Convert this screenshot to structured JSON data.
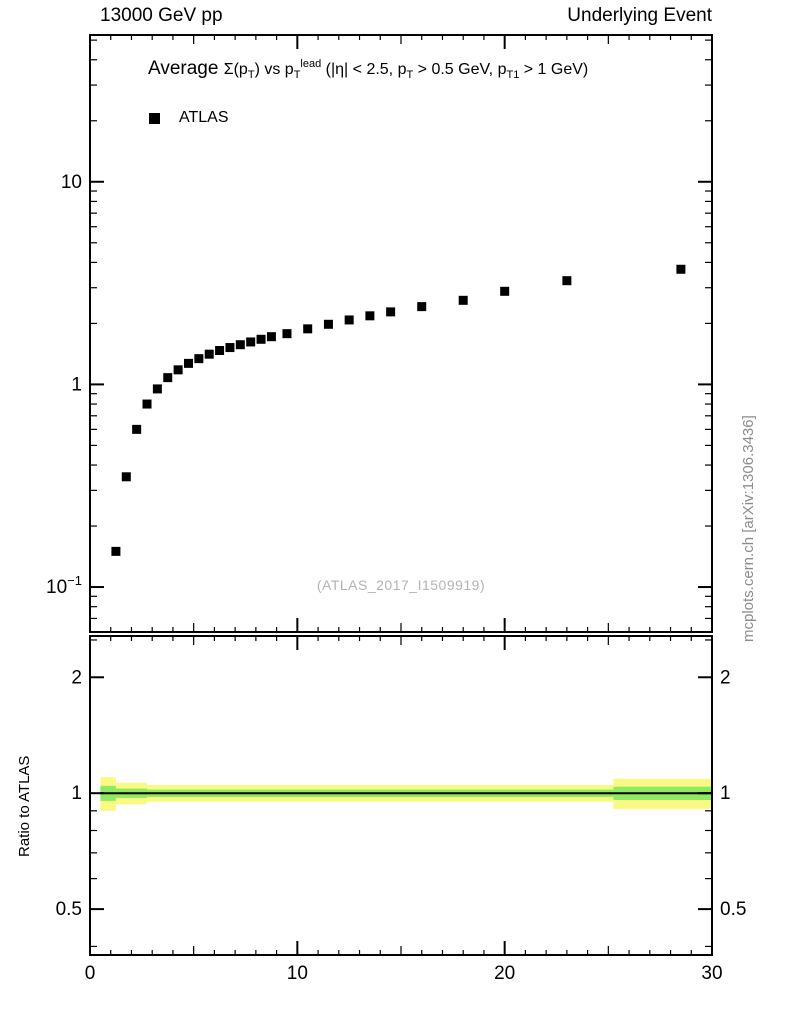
{
  "header": {
    "left": "13000 GeV pp",
    "right": "Underlying Event"
  },
  "watermark": "mcplots.cern.ch [arXiv:1306.3436]",
  "main_panel": {
    "title_rich": [
      {
        "t": "Average ",
        "s": "big"
      },
      {
        "t": "Σ(p",
        "s": "n"
      },
      {
        "t": "T",
        "s": "sub"
      },
      {
        "t": ") vs p",
        "s": "n"
      },
      {
        "t": "T",
        "s": "sub"
      },
      {
        "t": "lead",
        "s": "sup"
      },
      {
        "t": " (|η| < 2.5, p",
        "s": "n"
      },
      {
        "t": "T",
        "s": "sub"
      },
      {
        "t": " > 0.5 GeV, p",
        "s": "n"
      },
      {
        "t": "T1",
        "s": "sub"
      },
      {
        "t": " > 1 GeV)",
        "s": "n"
      }
    ],
    "legend": [
      {
        "label": "ATLAS",
        "marker": "filled-square",
        "color": "#000000"
      }
    ],
    "annotation": "(ATLAS_2017_I1509919)"
  },
  "ratio_panel": {
    "ylabel": "Ratio to ATLAS"
  },
  "chart_data": [
    {
      "type": "scatter",
      "title": "Average Σ(p_T) vs p_T^lead (|η| < 2.5, p_T > 0.5 GeV, p_T1 > 1 GeV)",
      "xscale": "linear",
      "yscale": "log",
      "xlim": [
        0,
        30
      ],
      "ylim": [
        0.06,
        53
      ],
      "xticks": [
        {
          "v": 0,
          "label": "0"
        },
        {
          "v": 10,
          "label": "10"
        },
        {
          "v": 20,
          "label": "20"
        },
        {
          "v": 30,
          "label": "30"
        }
      ],
      "yticks": [
        {
          "v": 10,
          "base": "10",
          "exp": ""
        },
        {
          "v": 1,
          "base": "1",
          "exp": ""
        },
        {
          "v": 0.1,
          "base": "10",
          "exp": "−1"
        }
      ],
      "series": [
        {
          "name": "ATLAS",
          "marker": "square",
          "color": "#000000",
          "x": [
            1.25,
            1.75,
            2.25,
            2.75,
            3.25,
            3.75,
            4.25,
            4.75,
            5.25,
            5.75,
            6.25,
            6.75,
            7.25,
            7.75,
            8.25,
            8.75,
            9.5,
            10.5,
            11.5,
            12.5,
            13.5,
            14.5,
            16.0,
            18.0,
            20.0,
            23.0,
            28.5
          ],
          "y": [
            0.15,
            0.35,
            0.6,
            0.8,
            0.95,
            1.08,
            1.18,
            1.27,
            1.34,
            1.41,
            1.47,
            1.52,
            1.57,
            1.62,
            1.67,
            1.72,
            1.78,
            1.88,
            1.98,
            2.08,
            2.18,
            2.28,
            2.42,
            2.6,
            2.88,
            3.25,
            3.7
          ]
        }
      ]
    },
    {
      "type": "band",
      "ylabel": "Ratio to ATLAS",
      "yscale": "log",
      "xlim": [
        0,
        30
      ],
      "ylim": [
        0.38,
        2.56
      ],
      "yticks": [
        {
          "v": 0.5,
          "label": "0.5"
        },
        {
          "v": 1,
          "label": "1"
        },
        {
          "v": 2,
          "label": "2"
        }
      ],
      "minor_yticks": [
        0.4,
        0.6,
        0.7,
        0.8,
        0.9,
        2.5
      ],
      "reference_line": 1.0,
      "band_colors": {
        "outer": "#f9f983",
        "inner": "#90e965"
      },
      "band": [
        {
          "x0": 0.5,
          "x1": 1.25,
          "outer": 0.1,
          "inner": 0.045
        },
        {
          "x0": 1.25,
          "x1": 2.75,
          "outer": 0.065,
          "inner": 0.028
        },
        {
          "x0": 2.75,
          "x1": 25.25,
          "outer": 0.05,
          "inner": 0.022
        },
        {
          "x0": 25.25,
          "x1": 30,
          "outer": 0.09,
          "inner": 0.04
        }
      ]
    }
  ]
}
